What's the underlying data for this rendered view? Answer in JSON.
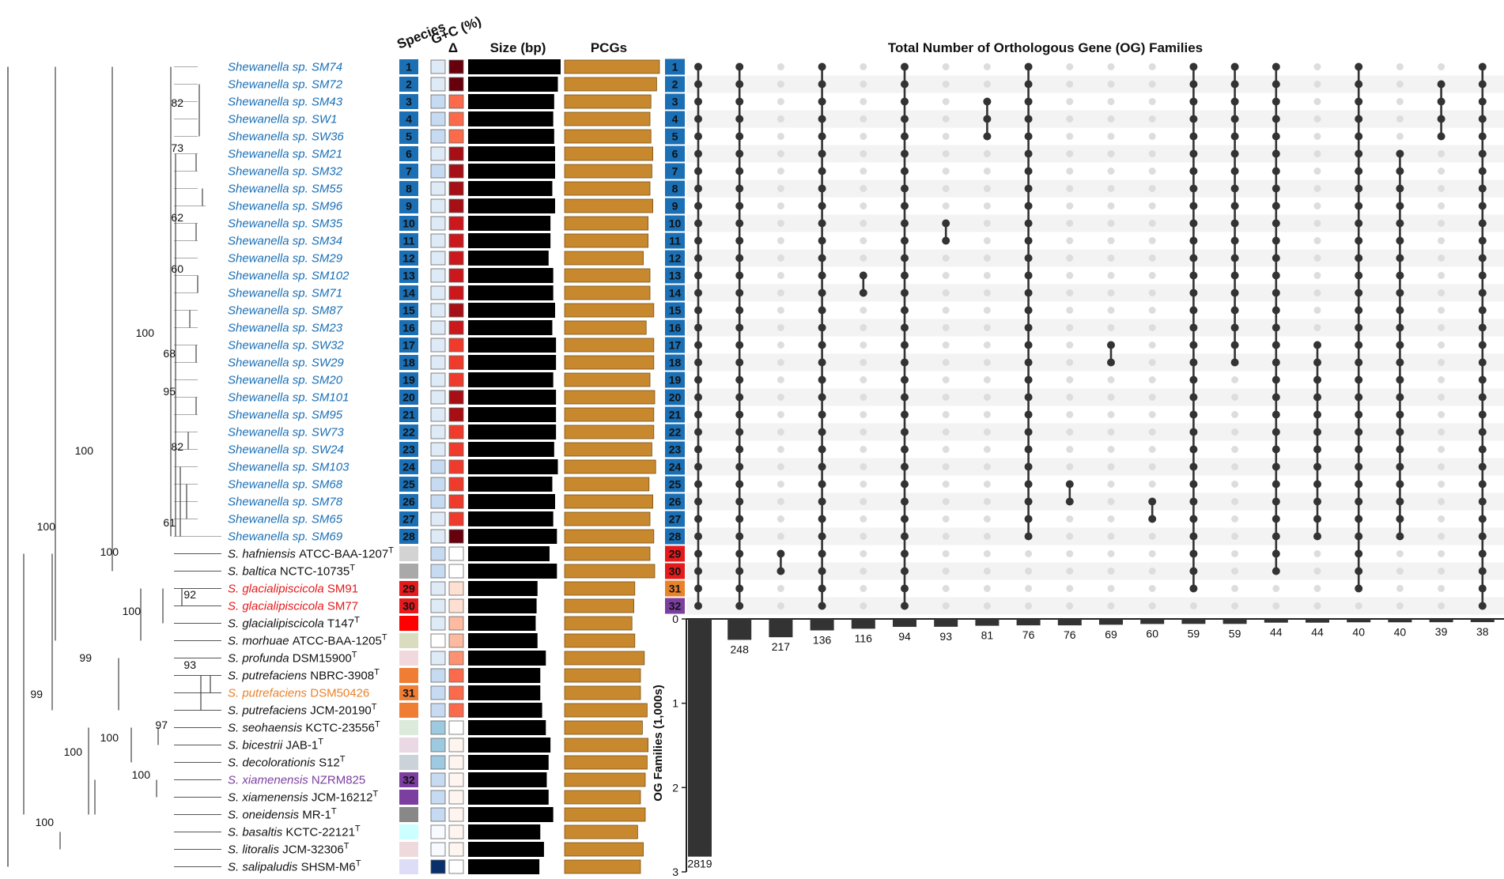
{
  "headers": {
    "species": "Species",
    "gc": "G+C (%)",
    "delta": "Δ",
    "size": "Size (bp)",
    "pcgs": "PCGs",
    "upset_title": "Total Number of Orthologous Gene (OG) Families",
    "og_axis": "OG Families (1,000s)"
  },
  "colors": {
    "blue_label": "#1a6fb5",
    "red_label": "#e41a1c",
    "orange_label": "#e8822b",
    "purple_label": "#7b3fa0",
    "pcg_fill": "#c8882e",
    "size_fill": "#000000",
    "dot_active": "#333333",
    "dot_inactive": "#dddddd"
  },
  "tree_support": [
    "82",
    "73",
    "62",
    "60",
    "100",
    "68",
    "95",
    "82",
    "61",
    "100",
    "100",
    "100",
    "92",
    "100",
    "99",
    "93",
    "99",
    "97",
    "100",
    "100",
    "100",
    "100"
  ],
  "taxa": [
    {
      "genus": "Shewanella sp.",
      "strain": "SM74",
      "sup": "",
      "color": "blue",
      "badge": "1"
    },
    {
      "genus": "Shewanella sp.",
      "strain": "SM72",
      "sup": "",
      "color": "blue",
      "badge": "2"
    },
    {
      "genus": "Shewanella sp.",
      "strain": "SM43",
      "sup": "",
      "color": "blue",
      "badge": "3"
    },
    {
      "genus": "Shewanella sp.",
      "strain": "SW1",
      "sup": "",
      "color": "blue",
      "badge": "4"
    },
    {
      "genus": "Shewanella sp.",
      "strain": "SW36",
      "sup": "",
      "color": "blue",
      "badge": "5"
    },
    {
      "genus": "Shewanella sp.",
      "strain": "SM21",
      "sup": "",
      "color": "blue",
      "badge": "6"
    },
    {
      "genus": "Shewanella sp.",
      "strain": "SM32",
      "sup": "",
      "color": "blue",
      "badge": "7"
    },
    {
      "genus": "Shewanella sp.",
      "strain": "SM55",
      "sup": "",
      "color": "blue",
      "badge": "8"
    },
    {
      "genus": "Shewanella sp.",
      "strain": "SM96",
      "sup": "",
      "color": "blue",
      "badge": "9"
    },
    {
      "genus": "Shewanella sp.",
      "strain": "SM35",
      "sup": "",
      "color": "blue",
      "badge": "10"
    },
    {
      "genus": "Shewanella sp.",
      "strain": "SM34",
      "sup": "",
      "color": "blue",
      "badge": "11"
    },
    {
      "genus": "Shewanella sp.",
      "strain": "SM29",
      "sup": "",
      "color": "blue",
      "badge": "12"
    },
    {
      "genus": "Shewanella sp.",
      "strain": "SM102",
      "sup": "",
      "color": "blue",
      "badge": "13"
    },
    {
      "genus": "Shewanella sp.",
      "strain": "SM71",
      "sup": "",
      "color": "blue",
      "badge": "14"
    },
    {
      "genus": "Shewanella sp.",
      "strain": "SM87",
      "sup": "",
      "color": "blue",
      "badge": "15"
    },
    {
      "genus": "Shewanella sp.",
      "strain": "SM23",
      "sup": "",
      "color": "blue",
      "badge": "16"
    },
    {
      "genus": "Shewanella sp.",
      "strain": "SW32",
      "sup": "",
      "color": "blue",
      "badge": "17"
    },
    {
      "genus": "Shewanella sp.",
      "strain": "SW29",
      "sup": "",
      "color": "blue",
      "badge": "18"
    },
    {
      "genus": "Shewanella sp.",
      "strain": "SM20",
      "sup": "",
      "color": "blue",
      "badge": "19"
    },
    {
      "genus": "Shewanella sp.",
      "strain": "SM101",
      "sup": "",
      "color": "blue",
      "badge": "20"
    },
    {
      "genus": "Shewanella sp.",
      "strain": "SM95",
      "sup": "",
      "color": "blue",
      "badge": "21"
    },
    {
      "genus": "Shewanella sp.",
      "strain": "SW73",
      "sup": "",
      "color": "blue",
      "badge": "22"
    },
    {
      "genus": "Shewanella sp.",
      "strain": "SW24",
      "sup": "",
      "color": "blue",
      "badge": "23"
    },
    {
      "genus": "Shewanella sp.",
      "strain": "SM103",
      "sup": "",
      "color": "blue",
      "badge": "24"
    },
    {
      "genus": "Shewanella sp.",
      "strain": "SM68",
      "sup": "",
      "color": "blue",
      "badge": "25"
    },
    {
      "genus": "Shewanella sp.",
      "strain": "SM78",
      "sup": "",
      "color": "blue",
      "badge": "26"
    },
    {
      "genus": "Shewanella sp.",
      "strain": "SM65",
      "sup": "",
      "color": "blue",
      "badge": "27"
    },
    {
      "genus": "Shewanella sp.",
      "strain": "SM69",
      "sup": "",
      "color": "blue",
      "badge": "28"
    },
    {
      "genus": "S. hafniensis",
      "strain": "ATCC-BAA-1207",
      "sup": "T",
      "color": "black",
      "badge": ""
    },
    {
      "genus": "S. baltica",
      "strain": "NCTC-10735",
      "sup": "T",
      "color": "black",
      "badge": ""
    },
    {
      "genus": "S. glacialipiscicola",
      "strain": "SM91",
      "sup": "",
      "color": "red",
      "badge": "29"
    },
    {
      "genus": "S. glacialipiscicola",
      "strain": "SM77",
      "sup": "",
      "color": "red",
      "badge": "30"
    },
    {
      "genus": "S. glacialipiscicola",
      "strain": "T147",
      "sup": "T",
      "color": "black",
      "badge": ""
    },
    {
      "genus": "S. morhuae",
      "strain": "ATCC-BAA-1205",
      "sup": "T",
      "color": "black",
      "badge": ""
    },
    {
      "genus": "S. profunda",
      "strain": "DSM15900",
      "sup": "T",
      "color": "black",
      "badge": ""
    },
    {
      "genus": "S. putrefaciens",
      "strain": "NBRC-3908",
      "sup": "T",
      "color": "black",
      "badge": ""
    },
    {
      "genus": "S. putrefaciens",
      "strain": "DSM50426",
      "sup": "",
      "color": "orange",
      "badge": "31"
    },
    {
      "genus": "S. putrefaciens",
      "strain": "JCM-20190",
      "sup": "T",
      "color": "black",
      "badge": ""
    },
    {
      "genus": "S. seohaensis",
      "strain": "KCTC-23556",
      "sup": "T",
      "color": "black",
      "badge": ""
    },
    {
      "genus": "S. bicestrii",
      "strain": "JAB-1",
      "sup": "T",
      "color": "black",
      "badge": ""
    },
    {
      "genus": "S. decolorationis",
      "strain": "S12",
      "sup": "T",
      "color": "black",
      "badge": ""
    },
    {
      "genus": "S. xiamenensis",
      "strain": "NZRM825",
      "sup": "",
      "color": "purple",
      "badge": "32"
    },
    {
      "genus": "S. xiamenensis",
      "strain": "JCM-16212",
      "sup": "T",
      "color": "black",
      "badge": ""
    },
    {
      "genus": "S. oneidensis",
      "strain": "MR-1",
      "sup": "T",
      "color": "black",
      "badge": ""
    },
    {
      "genus": "S. basaltis",
      "strain": "KCTC-22121",
      "sup": "T",
      "color": "black",
      "badge": ""
    },
    {
      "genus": "S. litoralis",
      "strain": "JCM-32306",
      "sup": "T",
      "color": "black",
      "badge": ""
    },
    {
      "genus": "S. salipaludis",
      "strain": "SHSM-M6",
      "sup": "T",
      "color": "black",
      "badge": ""
    }
  ],
  "species_colors": [
    "#1a6fb5",
    "#1a6fb5",
    "#1a6fb5",
    "#1a6fb5",
    "#1a6fb5",
    "#1a6fb5",
    "#1a6fb5",
    "#1a6fb5",
    "#1a6fb5",
    "#1a6fb5",
    "#1a6fb5",
    "#1a6fb5",
    "#1a6fb5",
    "#1a6fb5",
    "#1a6fb5",
    "#1a6fb5",
    "#1a6fb5",
    "#1a6fb5",
    "#1a6fb5",
    "#1a6fb5",
    "#1a6fb5",
    "#1a6fb5",
    "#1a6fb5",
    "#1a6fb5",
    "#1a6fb5",
    "#1a6fb5",
    "#1a6fb5",
    "#1a6fb5",
    "#d3d3d3",
    "#a9a9a9",
    "#e41a1c",
    "#e41a1c",
    "#ff0000",
    "#dadcc0",
    "#f0d8dc",
    "#ef7d33",
    "#ef7d33",
    "#ef7d33",
    "#dbeadb",
    "#ead8e4",
    "#cad3d9",
    "#7b3fa0",
    "#7b3fa0",
    "#888888",
    "#ccffff",
    "#eedadd",
    "#ddddf8"
  ],
  "gc_colors": [
    "#dfeaf7",
    "#dfeaf7",
    "#c6daf1",
    "#c6daf1",
    "#c6daf1",
    "#dfeaf7",
    "#c6daf1",
    "#dfeaf7",
    "#dfeaf7",
    "#dfeaf7",
    "#dfeaf7",
    "#dfeaf7",
    "#dfeaf7",
    "#dfeaf7",
    "#dfeaf7",
    "#dfeaf7",
    "#dfeaf7",
    "#dfeaf7",
    "#dfeaf7",
    "#dfeaf7",
    "#dfeaf7",
    "#dfeaf7",
    "#dfeaf7",
    "#c6daf1",
    "#c6daf1",
    "#c6daf1",
    "#dfeaf7",
    "#dfeaf7",
    "#c6daf1",
    "#c6daf1",
    "#dfeaf7",
    "#dfeaf7",
    "#dfeaf7",
    "#ffffff",
    "#dfeaf7",
    "#c6daf1",
    "#c6daf1",
    "#c6daf1",
    "#9ecae1",
    "#9ecae1",
    "#9ecae1",
    "#c6daf1",
    "#c6daf1",
    "#c6daf1",
    "#f7fbff",
    "#f7fbff",
    "#08306b"
  ],
  "delta_colors": [
    "#67000d",
    "#67000d",
    "#fb6a4a",
    "#fb6a4a",
    "#fb6a4a",
    "#a50f15",
    "#a50f15",
    "#a50f15",
    "#a50f15",
    "#cb181d",
    "#cb181d",
    "#cb181d",
    "#cb181d",
    "#cb181d",
    "#a50f15",
    "#cb181d",
    "#ef3b2c",
    "#ef3b2c",
    "#ef3b2c",
    "#a50f15",
    "#a50f15",
    "#ef3b2c",
    "#ef3b2c",
    "#ef3b2c",
    "#ef3b2c",
    "#ef3b2c",
    "#ef3b2c",
    "#67000d",
    "#ffffff",
    "#ffffff",
    "#fee0d2",
    "#fee0d2",
    "#fcbba1",
    "#fcbba1",
    "#fc9272",
    "#fb6a4a",
    "#fb6a4a",
    "#fb6a4a",
    "#ffffff",
    "#fff5f0",
    "#fff5f0",
    "#fff5f0",
    "#fff5f0",
    "#fff5f0",
    "#fff5f0",
    "#fff5f0",
    "#ffffff"
  ],
  "size_rel": [
    1.0,
    0.97,
    0.93,
    0.92,
    0.93,
    0.94,
    0.94,
    0.91,
    0.94,
    0.89,
    0.89,
    0.87,
    0.92,
    0.92,
    0.94,
    0.91,
    0.95,
    0.95,
    0.92,
    0.95,
    0.95,
    0.95,
    0.93,
    0.97,
    0.91,
    0.94,
    0.92,
    0.96,
    0.88,
    0.96,
    0.75,
    0.74,
    0.73,
    0.75,
    0.84,
    0.78,
    0.78,
    0.8,
    0.84,
    0.89,
    0.87,
    0.85,
    0.87,
    0.92,
    0.78,
    0.82,
    0.77
  ],
  "pcg_rel": [
    1.0,
    0.97,
    0.91,
    0.9,
    0.91,
    0.93,
    0.92,
    0.9,
    0.93,
    0.88,
    0.88,
    0.83,
    0.9,
    0.9,
    0.94,
    0.86,
    0.94,
    0.94,
    0.9,
    0.95,
    0.94,
    0.94,
    0.92,
    0.96,
    0.89,
    0.93,
    0.9,
    0.94,
    0.9,
    0.95,
    0.74,
    0.73,
    0.71,
    0.74,
    0.84,
    0.8,
    0.8,
    0.87,
    0.82,
    0.88,
    0.87,
    0.85,
    0.8,
    0.85,
    0.77,
    0.83,
    0.8
  ],
  "upset": {
    "row_badges": [
      "1",
      "2",
      "3",
      "4",
      "5",
      "6",
      "7",
      "8",
      "9",
      "10",
      "11",
      "12",
      "13",
      "14",
      "15",
      "16",
      "17",
      "18",
      "19",
      "20",
      "21",
      "22",
      "23",
      "24",
      "25",
      "26",
      "27",
      "28",
      "29",
      "30",
      "31",
      "32"
    ],
    "column_counts": [
      "248",
      "217",
      "136",
      "116",
      "94",
      "93",
      "81",
      "76",
      "76",
      "69",
      "60",
      "59",
      "59",
      "44",
      "44",
      "40",
      "40",
      "39",
      "38"
    ],
    "total_label": "2819",
    "axis_ticks": [
      "0",
      "1",
      "2",
      "3"
    ]
  },
  "chart_data": {
    "type": "upset",
    "title": "Total Number of Orthologous Gene (OG) Families",
    "ylabel": "OG Families (1,000s)",
    "ylim": [
      0,
      3
    ],
    "set_total": 2819,
    "columns": [
      {
        "count": 2819,
        "rows": [
          1,
          2,
          3,
          4,
          5,
          6,
          7,
          8,
          9,
          10,
          11,
          12,
          13,
          14,
          15,
          16,
          17,
          18,
          19,
          20,
          21,
          22,
          23,
          24,
          25,
          26,
          27,
          28,
          29,
          30,
          31,
          32
        ]
      },
      {
        "count": 248,
        "rows": [
          1,
          2,
          3,
          4,
          5,
          6,
          7,
          8,
          9,
          10,
          11,
          12,
          13,
          14,
          15,
          16,
          17,
          18,
          19,
          20,
          21,
          22,
          23,
          24,
          25,
          26,
          27,
          28,
          29,
          30,
          31,
          32
        ]
      },
      {
        "count": 217,
        "rows": [
          29,
          30
        ]
      },
      {
        "count": 136,
        "rows": [
          1,
          2,
          3,
          4,
          5,
          6,
          7,
          8,
          9,
          10,
          11,
          12,
          13,
          14,
          15,
          16,
          17,
          18,
          19,
          20,
          21,
          22,
          23,
          24,
          25,
          26,
          27,
          28,
          29,
          30,
          31,
          32
        ]
      },
      {
        "count": 116,
        "rows": [
          13,
          14
        ]
      },
      {
        "count": 94,
        "rows": [
          1,
          2,
          3,
          4,
          5,
          6,
          7,
          8,
          9,
          10,
          11,
          12,
          13,
          14,
          15,
          16,
          17,
          18,
          19,
          20,
          21,
          22,
          23,
          24,
          25,
          26,
          27,
          28,
          29,
          30,
          31,
          32
        ]
      },
      {
        "count": 93,
        "rows": [
          10,
          11
        ]
      },
      {
        "count": 81,
        "rows": [
          3,
          4,
          5
        ]
      },
      {
        "count": 76,
        "rows": [
          1,
          2,
          3,
          4,
          5,
          6,
          7,
          8,
          9,
          10,
          11,
          12,
          13,
          14,
          15,
          16,
          17,
          18,
          19,
          20,
          21,
          22,
          23,
          24,
          25,
          26,
          27,
          28
        ]
      },
      {
        "count": 76,
        "rows": [
          25,
          26
        ]
      },
      {
        "count": 69,
        "rows": [
          17,
          18
        ]
      },
      {
        "count": 60,
        "rows": [
          26,
          27
        ]
      },
      {
        "count": 59,
        "rows": [
          1,
          2,
          3,
          4,
          5,
          6,
          7,
          8,
          9,
          10,
          11,
          12,
          13,
          14,
          15,
          16,
          17,
          18,
          19,
          20,
          21,
          22,
          23,
          24,
          25,
          26,
          27,
          28,
          29,
          30,
          31
        ]
      },
      {
        "count": 59,
        "rows": [
          1,
          2,
          3,
          4,
          5,
          6,
          7,
          8,
          9,
          10,
          11,
          12,
          13,
          14,
          15,
          16,
          17,
          18
        ]
      },
      {
        "count": 44,
        "rows": [
          1,
          2,
          3,
          4,
          5,
          6,
          7,
          8,
          9,
          10,
          11,
          12,
          13,
          14,
          15,
          16,
          17,
          18,
          19,
          20,
          21,
          22,
          23,
          24,
          25,
          26,
          27,
          28,
          29,
          30
        ]
      },
      {
        "count": 44,
        "rows": [
          17,
          18,
          19,
          20,
          21,
          22,
          23,
          24,
          25,
          26,
          27,
          28
        ]
      },
      {
        "count": 40,
        "rows": [
          1,
          2,
          3,
          4,
          5,
          6,
          7,
          8,
          9,
          10,
          11,
          12,
          13,
          14,
          15,
          16,
          17,
          18,
          19,
          20,
          21,
          22,
          23,
          24,
          25,
          26,
          27,
          28,
          29,
          30,
          31
        ]
      },
      {
        "count": 40,
        "rows": [
          6,
          7,
          8,
          9,
          10,
          11,
          12,
          13,
          14,
          15,
          16,
          17,
          18,
          19,
          20,
          21,
          22,
          23,
          24,
          25,
          26,
          27,
          28
        ]
      },
      {
        "count": 39,
        "rows": [
          2,
          3,
          4,
          5
        ]
      },
      {
        "count": 38,
        "rows": [
          1,
          2,
          3,
          4,
          5,
          6,
          7,
          8,
          9,
          10,
          11,
          12,
          13,
          14,
          15,
          16,
          17,
          18,
          19,
          20,
          21,
          22,
          23,
          24,
          25,
          26,
          27,
          28,
          29,
          30,
          31,
          32
        ]
      }
    ]
  }
}
